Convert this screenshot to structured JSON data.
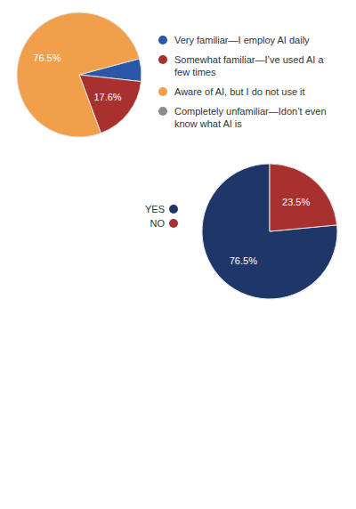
{
  "chart_data": [
    {
      "type": "pie",
      "categories": [
        "Very familiar—I employ AI daily",
        "Somewhat familiar—I’ve used AI a few times",
        "Aware of AI, but I do not use it",
        "Completely unfamiliar—Idon’t even know what AI is"
      ],
      "values": [
        5.9,
        17.6,
        76.5,
        0
      ],
      "value_labels": [
        null,
        "17.6%",
        "76.5%",
        null
      ],
      "colors": [
        "#2a58a6",
        "#a8302e",
        "#f0a04b",
        "#8c8c8c"
      ],
      "data_labels": true,
      "legend": "right"
    },
    {
      "type": "pie",
      "categories": [
        "YES",
        "NO"
      ],
      "values": [
        76.5,
        23.5
      ],
      "value_labels": [
        "76.5%",
        "23.5%"
      ],
      "colors": [
        "#1e3768",
        "#a8302e"
      ],
      "data_labels": true,
      "legend": "left"
    }
  ]
}
